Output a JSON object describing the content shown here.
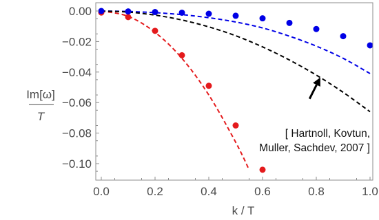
{
  "chart_data": {
    "type": "scatter",
    "xlabel": "k / T",
    "ylabel_numerator": "Im[ω]",
    "ylabel_denominator": "T",
    "xlim": [
      0.0,
      1.0
    ],
    "ylim": [
      -0.105,
      0.002
    ],
    "x_ticks": [
      {
        "value": 0.0,
        "label": "0.0"
      },
      {
        "value": 0.2,
        "label": "0.2"
      },
      {
        "value": 0.4,
        "label": "0.4"
      },
      {
        "value": 0.6,
        "label": "0.6"
      },
      {
        "value": 0.8,
        "label": "0.8"
      },
      {
        "value": 1.0,
        "label": "1.0"
      }
    ],
    "y_ticks": [
      {
        "value": 0.0,
        "label": "0.00"
      },
      {
        "value": -0.02,
        "label": "−0.02"
      },
      {
        "value": -0.04,
        "label": "−0.04"
      },
      {
        "value": -0.06,
        "label": "−0.06"
      },
      {
        "value": -0.08,
        "label": "−0.08"
      },
      {
        "value": -0.1,
        "label": "−0.10"
      }
    ],
    "grid": false,
    "series": [
      {
        "kind": "points",
        "color": "#e41a1c",
        "x": [
          0.0,
          0.1,
          0.2,
          0.3,
          0.4,
          0.5,
          0.6
        ],
        "y": [
          -0.001,
          -0.004,
          -0.013,
          -0.029,
          -0.049,
          -0.075,
          -0.104
        ]
      },
      {
        "kind": "points",
        "color": "#0000e6",
        "x": [
          0.0,
          0.1,
          0.2,
          0.3,
          0.4,
          0.5,
          0.6,
          0.7,
          0.8,
          0.9,
          1.0
        ],
        "y": [
          0.0,
          -0.0003,
          -0.0007,
          -0.0011,
          -0.0018,
          -0.0031,
          -0.0048,
          -0.0078,
          -0.0118,
          -0.0165,
          -0.0225
        ]
      },
      {
        "kind": "dashed-curve",
        "color": "#e41a1c",
        "x": [
          0.0,
          0.1,
          0.2,
          0.3,
          0.4,
          0.5,
          0.55
        ],
        "y": [
          0.0,
          -0.0035,
          -0.014,
          -0.031,
          -0.055,
          -0.086,
          -0.104
        ]
      },
      {
        "kind": "dashed-curve",
        "color": "#0000e6",
        "x": [
          0.0,
          0.1,
          0.2,
          0.3,
          0.4,
          0.5,
          0.6,
          0.7,
          0.8,
          0.9,
          1.0
        ],
        "y": [
          0.0,
          -0.0003,
          -0.0011,
          -0.0024,
          -0.0044,
          -0.0072,
          -0.0111,
          -0.0165,
          -0.023,
          -0.031,
          -0.041
        ]
      },
      {
        "kind": "dashed-curve",
        "color": "#000000",
        "x": [
          0.0,
          0.1,
          0.2,
          0.3,
          0.4,
          0.5,
          0.6,
          0.7,
          0.8,
          0.9,
          1.0
        ],
        "y": [
          0.0,
          -0.0007,
          -0.0027,
          -0.0059,
          -0.0104,
          -0.0162,
          -0.0235,
          -0.0321,
          -0.042,
          -0.0533,
          -0.066
        ]
      }
    ],
    "annotation": {
      "lines": [
        "[ Hartnoll, Kovtun,",
        "Muller, Sachdev, 2007 ]"
      ],
      "arrow_from": {
        "x": 0.775,
        "y": -0.0575
      },
      "arrow_to": {
        "x": 0.815,
        "y": -0.0435
      }
    }
  }
}
